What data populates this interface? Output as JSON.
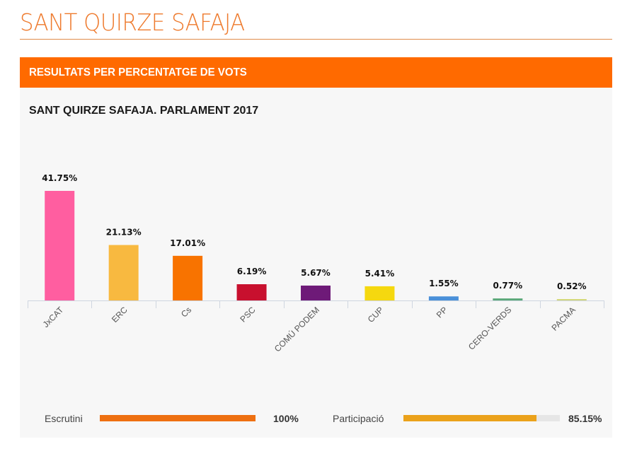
{
  "page": {
    "title": "SANT QUIRZE SAFAJA"
  },
  "panel": {
    "header": "RESULTATS PER PERCENTATGE DE VOTS",
    "chart_title": "SANT QUIRZE SAFAJA. PARLAMENT 2017"
  },
  "chart_data": {
    "type": "bar",
    "title": "SANT QUIRZE SAFAJA. PARLAMENT 2017",
    "xlabel": "",
    "ylabel": "",
    "ylim": [
      0,
      41.75
    ],
    "grid": false,
    "categories": [
      "JxCAT",
      "ERC",
      "Cs",
      "PSC",
      "COMÚ PODEM",
      "CUP",
      "PP",
      "CERO-VERDS",
      "PACMA"
    ],
    "values": [
      41.75,
      21.13,
      17.01,
      6.19,
      5.67,
      5.41,
      1.55,
      0.77,
      0.52
    ],
    "labels": [
      "41.75%",
      "21.13%",
      "17.01%",
      "6.19%",
      "5.67%",
      "5.41%",
      "1.55%",
      "0.77%",
      "0.52%"
    ],
    "colors": [
      "#ff5ea0",
      "#f8b940",
      "#f87300",
      "#c8102e",
      "#6e1a78",
      "#f5d80f",
      "#4a90d9",
      "#5aa879",
      "#d4d97a"
    ]
  },
  "footer": {
    "escrutini": {
      "label": "Escrutini",
      "value_text": "100%",
      "fraction": 1.0,
      "color": "#ee7011"
    },
    "participacio": {
      "label": "Participació",
      "value_text": "85.15%",
      "fraction": 0.8515,
      "color": "#eba21b"
    }
  }
}
